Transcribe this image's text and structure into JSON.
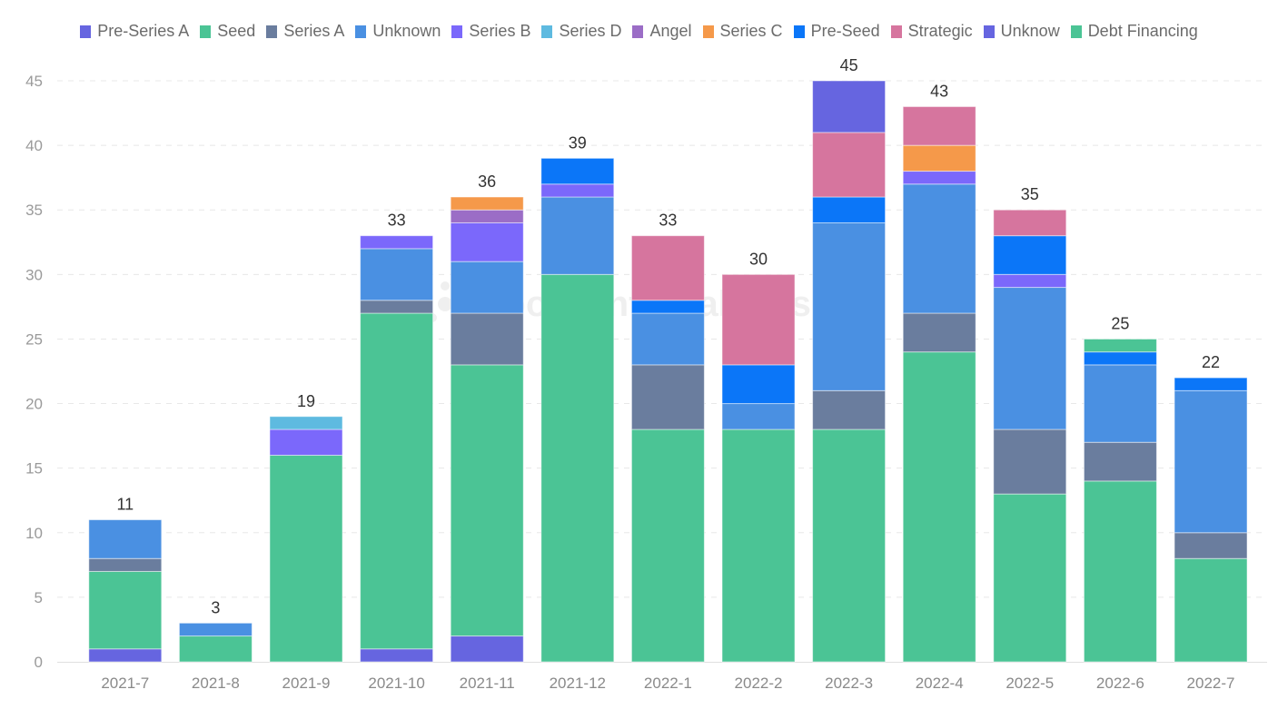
{
  "chart_data": {
    "type": "bar",
    "stacked": true,
    "categories": [
      "2021-7",
      "2021-8",
      "2021-9",
      "2021-10",
      "2021-11",
      "2021-12",
      "2022-1",
      "2022-2",
      "2022-3",
      "2022-4",
      "2022-5",
      "2022-6",
      "2022-7"
    ],
    "totals": [
      11,
      3,
      19,
      33,
      36,
      39,
      33,
      30,
      45,
      43,
      35,
      25,
      22
    ],
    "ylim": [
      0,
      45
    ],
    "yticks": [
      0,
      5,
      10,
      15,
      20,
      25,
      30,
      35,
      40,
      45
    ],
    "grid": true,
    "legend_position": "top",
    "series": [
      {
        "name": "Pre-Series A",
        "color": "#6665e0",
        "values": [
          1,
          0,
          0,
          1,
          2,
          0,
          0,
          0,
          0,
          0,
          0,
          0,
          0
        ]
      },
      {
        "name": "Seed",
        "color": "#4bc495",
        "values": [
          6,
          2,
          16,
          26,
          21,
          30,
          18,
          18,
          18,
          24,
          13,
          14,
          8
        ]
      },
      {
        "name": "Series A",
        "color": "#6a7d9e",
        "values": [
          1,
          0,
          0,
          1,
          4,
          0,
          5,
          0,
          3,
          3,
          5,
          3,
          2
        ]
      },
      {
        "name": "Unknown",
        "color": "#4a90e2",
        "values": [
          3,
          1,
          0,
          4,
          4,
          6,
          4,
          2,
          13,
          10,
          11,
          6,
          11
        ]
      },
      {
        "name": "Series B",
        "color": "#7b68fb",
        "values": [
          0,
          0,
          2,
          1,
          3,
          1,
          0,
          0,
          0,
          1,
          1,
          0,
          0
        ]
      },
      {
        "name": "Series D",
        "color": "#5ebae0",
        "values": [
          0,
          0,
          1,
          0,
          0,
          0,
          0,
          0,
          0,
          0,
          0,
          0,
          0
        ]
      },
      {
        "name": "Angel",
        "color": "#9b6dc6",
        "values": [
          0,
          0,
          0,
          0,
          1,
          0,
          0,
          0,
          0,
          0,
          0,
          0,
          0
        ]
      },
      {
        "name": "Series C",
        "color": "#f5994a",
        "values": [
          0,
          0,
          0,
          0,
          1,
          0,
          0,
          0,
          0,
          2,
          0,
          0,
          0
        ]
      },
      {
        "name": "Pre-Seed",
        "color": "#0b76f8",
        "values": [
          0,
          0,
          0,
          0,
          0,
          2,
          1,
          3,
          2,
          0,
          3,
          1,
          1
        ]
      },
      {
        "name": "Strategic",
        "color": "#d6759e",
        "values": [
          0,
          0,
          0,
          0,
          0,
          0,
          5,
          7,
          5,
          3,
          2,
          0,
          0
        ]
      },
      {
        "name": "Unknow",
        "color": "#6665e0",
        "values": [
          0,
          0,
          0,
          0,
          0,
          0,
          0,
          0,
          4,
          0,
          0,
          0,
          0
        ]
      },
      {
        "name": "Debt Financing",
        "color": "#4bc495",
        "values": [
          0,
          0,
          0,
          0,
          0,
          0,
          0,
          0,
          0,
          0,
          0,
          1,
          0
        ]
      }
    ]
  },
  "watermark": "Footprint Analytics"
}
